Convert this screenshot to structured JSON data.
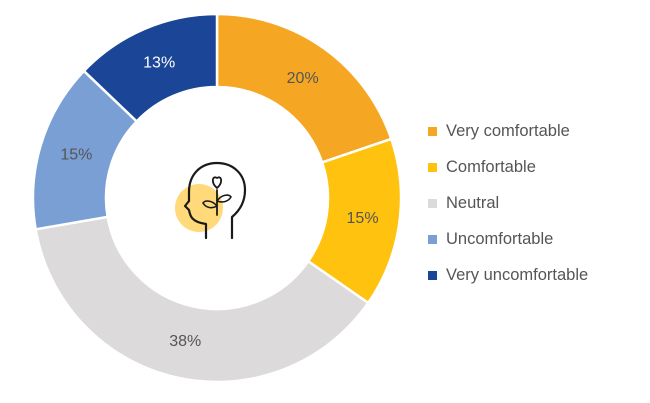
{
  "chart_data": {
    "type": "pie",
    "variant": "donut",
    "title": "",
    "legend_position": "right",
    "center_icon": "head-with-heart-and-sprout-icon",
    "slices": [
      {
        "label": "Very comfortable",
        "value": 20,
        "display": "20%",
        "color": "#F5A623"
      },
      {
        "label": "Comfortable",
        "value": 15,
        "display": "15%",
        "color": "#FFC20E"
      },
      {
        "label": "Neutral",
        "value": 38,
        "display": "38%",
        "color": "#DCDADA"
      },
      {
        "label": "Uncomfortable",
        "value": 15,
        "display": "15%",
        "color": "#7A9FD4"
      },
      {
        "label": "Very uncomfortable",
        "value": 13,
        "display": "13%",
        "color": "#1B4596"
      }
    ],
    "label_colors": {
      "on_light": "#555555",
      "on_dark": "#FFFFFF"
    }
  }
}
